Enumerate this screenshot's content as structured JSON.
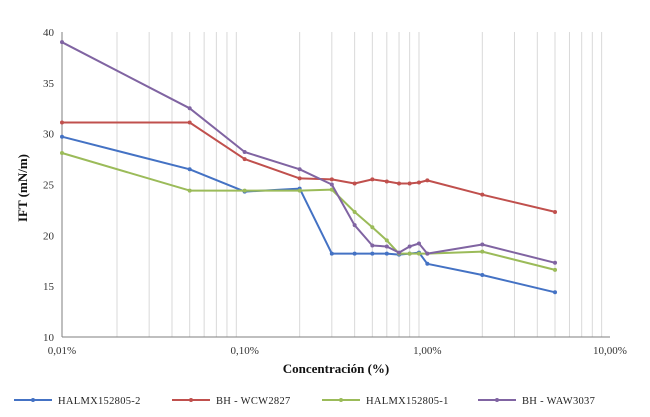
{
  "chart_data": {
    "type": "line",
    "title": "",
    "xlabel": "Concentración (%)",
    "ylabel": "IFT (mN/m)",
    "x_scale": "log",
    "xlim": [
      0.01,
      10
    ],
    "ylim": [
      10,
      40
    ],
    "x_ticks": [
      {
        "value": 0.01,
        "label": "0,01%"
      },
      {
        "value": 0.1,
        "label": "0,10%"
      },
      {
        "value": 1,
        "label": "1,00%"
      },
      {
        "value": 10,
        "label": "10,00%"
      }
    ],
    "y_ticks": [
      10,
      15,
      20,
      25,
      30,
      35,
      40
    ],
    "grid": "vertical-minor-log",
    "legend_position": "bottom",
    "series": [
      {
        "name": "HALMX152805-2",
        "color": "#4472c4",
        "points": [
          [
            0.01,
            29.7
          ],
          [
            0.05,
            26.5
          ],
          [
            0.1,
            24.3
          ],
          [
            0.2,
            24.6
          ],
          [
            0.3,
            18.2
          ],
          [
            0.4,
            18.2
          ],
          [
            0.5,
            18.2
          ],
          [
            0.6,
            18.2
          ],
          [
            0.7,
            18.1
          ],
          [
            0.8,
            18.2
          ],
          [
            0.9,
            18.3
          ],
          [
            1.0,
            17.2
          ],
          [
            2.0,
            16.1
          ],
          [
            5.0,
            14.4
          ]
        ]
      },
      {
        "name": "BH - WCW2827",
        "color": "#c0504d",
        "points": [
          [
            0.01,
            31.1
          ],
          [
            0.05,
            31.1
          ],
          [
            0.1,
            27.5
          ],
          [
            0.2,
            25.6
          ],
          [
            0.3,
            25.5
          ],
          [
            0.4,
            25.1
          ],
          [
            0.5,
            25.5
          ],
          [
            0.6,
            25.3
          ],
          [
            0.7,
            25.1
          ],
          [
            0.8,
            25.1
          ],
          [
            0.9,
            25.2
          ],
          [
            1.0,
            25.4
          ],
          [
            2.0,
            24.0
          ],
          [
            5.0,
            22.3
          ]
        ]
      },
      {
        "name": "HALMX152805-1",
        "color": "#9bbb59",
        "points": [
          [
            0.01,
            28.1
          ],
          [
            0.05,
            24.4
          ],
          [
            0.1,
            24.4
          ],
          [
            0.2,
            24.4
          ],
          [
            0.3,
            24.5
          ],
          [
            0.4,
            22.3
          ],
          [
            0.5,
            20.8
          ],
          [
            0.6,
            19.5
          ],
          [
            0.7,
            18.2
          ],
          [
            0.8,
            18.2
          ],
          [
            0.9,
            18.2
          ],
          [
            1.0,
            18.2
          ],
          [
            2.0,
            18.4
          ],
          [
            5.0,
            16.6
          ]
        ]
      },
      {
        "name": "BH - WAW3037",
        "color": "#8064a2",
        "points": [
          [
            0.01,
            39.0
          ],
          [
            0.05,
            32.5
          ],
          [
            0.1,
            28.2
          ],
          [
            0.2,
            26.5
          ],
          [
            0.3,
            25.0
          ],
          [
            0.4,
            21.0
          ],
          [
            0.5,
            19.0
          ],
          [
            0.6,
            18.9
          ],
          [
            0.7,
            18.3
          ],
          [
            0.8,
            18.9
          ],
          [
            0.9,
            19.2
          ],
          [
            1.0,
            18.2
          ],
          [
            2.0,
            19.1
          ],
          [
            5.0,
            17.3
          ]
        ]
      }
    ]
  }
}
